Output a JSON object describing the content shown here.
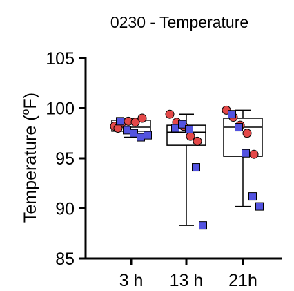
{
  "chart_data": {
    "type": "box",
    "title": "0230 - Temperature",
    "xlabel": "",
    "ylabel": "Temperature (",
    "ylabel_sup": "o",
    "ylabel_unit": "F)",
    "ylim": [
      85,
      105
    ],
    "yticks": [
      85,
      90,
      95,
      100,
      105
    ],
    "categories": [
      "3 h",
      "13 h",
      "21h"
    ],
    "colors": {
      "circle": "#e34848",
      "square": "#5353e0",
      "stroke": "#000000"
    },
    "boxes": [
      {
        "category": "3 h",
        "min": 97.1,
        "q1": 97.7,
        "median": 98.1,
        "q3": 98.8,
        "max": 99.0
      },
      {
        "category": "13 h",
        "min": 88.3,
        "q1": 96.3,
        "median": 97.6,
        "q3": 98.3,
        "max": 99.4
      },
      {
        "category": "21h",
        "min": 90.2,
        "q1": 95.2,
        "median": 98.1,
        "q3": 99.0,
        "max": 99.8
      }
    ],
    "series": [
      {
        "marker": "circle",
        "points": [
          {
            "category": "3 h",
            "values": [
              98.2,
              98.5,
              98.7,
              98.6,
              99.0,
              98.0
            ]
          },
          {
            "category": "13 h",
            "values": [
              99.4,
              98.6,
              98.2,
              97.2,
              96.7
            ]
          },
          {
            "category": "21h",
            "values": [
              99.8,
              99.1,
              98.3,
              97.5,
              95.4
            ]
          }
        ]
      },
      {
        "marker": "square",
        "points": [
          {
            "category": "3 h",
            "values": [
              98.7,
              97.8,
              97.5,
              97.1,
              97.3
            ]
          },
          {
            "category": "13 h",
            "values": [
              98.0,
              98.4,
              97.9,
              94.1,
              88.3
            ]
          },
          {
            "category": "21h",
            "values": [
              99.4,
              98.1,
              95.5,
              91.2,
              90.2
            ]
          }
        ]
      }
    ]
  }
}
